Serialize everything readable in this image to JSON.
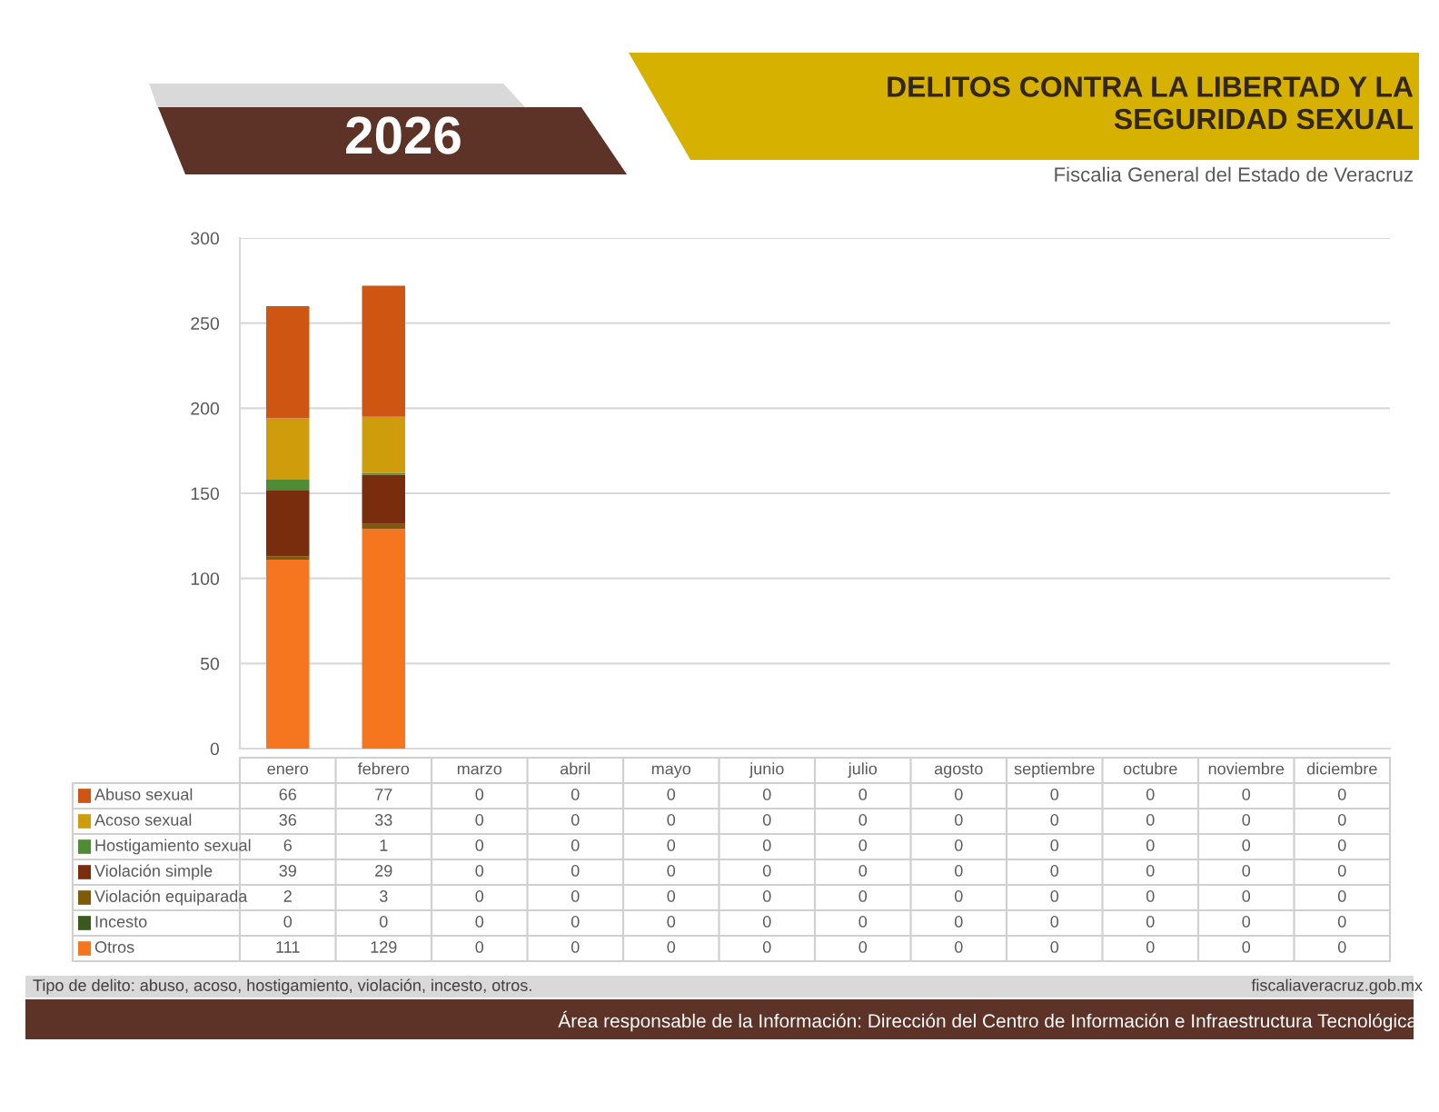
{
  "chart_data": {
    "type": "bar",
    "title": "DELITOS CONTRA LA LIBERTAD Y LA SEGURIDAD SEXUAL",
    "subtitle": "Fiscalia General del Estado de Veracruz",
    "annotations": [
      "2026",
      "Tipo de delito: abuso, acoso, hostigamiento, violación, incesto, otros.",
      "fiscaliaveracruz.gob.mx",
      "Área responsable de la Información: Dirección del Centro de Información e Infraestructura Tecnológica"
    ],
    "categories": [
      "enero",
      "febrero",
      "marzo",
      "abril",
      "mayo",
      "junio",
      "julio",
      "agosto",
      "septiembre",
      "octubre",
      "noviembre",
      "diciembre"
    ],
    "stacked": true,
    "series": [
      {
        "name": "Otros",
        "color": "#f5761f",
        "values": [
          111,
          129,
          0,
          0,
          0,
          0,
          0,
          0,
          0,
          0,
          0,
          0
        ]
      },
      {
        "name": "Incesto",
        "color": "#3b5a1e",
        "values": [
          0,
          0,
          0,
          0,
          0,
          0,
          0,
          0,
          0,
          0,
          0,
          0
        ]
      },
      {
        "name": "Violación equiparada",
        "color": "#7f5a0a",
        "values": [
          2,
          3,
          0,
          0,
          0,
          0,
          0,
          0,
          0,
          0,
          0,
          0
        ]
      },
      {
        "name": "Violación simple",
        "color": "#7a2d0c",
        "values": [
          39,
          29,
          0,
          0,
          0,
          0,
          0,
          0,
          0,
          0,
          0,
          0
        ]
      },
      {
        "name": "Hostigamiento sexual",
        "color": "#4f8c35",
        "values": [
          6,
          1,
          0,
          0,
          0,
          0,
          0,
          0,
          0,
          0,
          0,
          0
        ]
      },
      {
        "name": "Acoso sexual",
        "color": "#cf9c0c",
        "values": [
          36,
          33,
          0,
          0,
          0,
          0,
          0,
          0,
          0,
          0,
          0,
          0
        ]
      },
      {
        "name": "Abuso sexual",
        "color": "#cf5512",
        "values": [
          66,
          77,
          0,
          0,
          0,
          0,
          0,
          0,
          0,
          0,
          0,
          0
        ]
      }
    ],
    "ylim": [
      0,
      300
    ],
    "yticks": [
      0,
      50,
      100,
      150,
      200,
      250,
      300
    ],
    "grid": "y",
    "legend": "bottom left",
    "data_labels": true
  }
}
